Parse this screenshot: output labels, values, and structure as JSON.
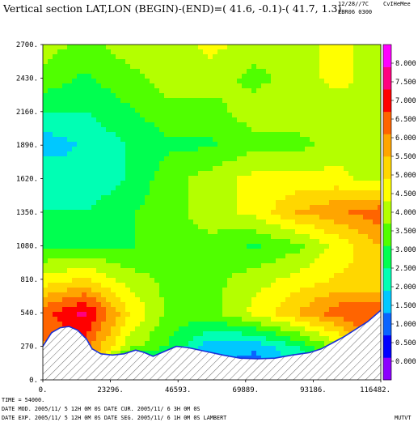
{
  "header": {
    "title": "Vertical section LAT,LON (BEGIN)-(END)=( 41.6, -0.1)-( 41.7,  1.3)",
    "date": "12/28//7C",
    "model": "EBR06 0300",
    "user": "CvIHeMee"
  },
  "footer": {
    "line1": "TIME =   54000.",
    "line2": "DATE MOD. 2005/11/ 5  12H 0M 0S   DATE CUR. 2005/11/ 6   3H 0M 0S",
    "line3": "DATE EXP. 2005/11/ 5  12H 0M 0S   DATE SEG. 2005/11/ 6   1H 0M 0S   LAMBERT",
    "variable": "MUTVT"
  },
  "colors": {
    "scale": [
      "#8b00ff",
      "#0000ff",
      "#0a64ff",
      "#00c8ff",
      "#00ffb4",
      "#00ff50",
      "#50ff00",
      "#b4ff00",
      "#ffff00",
      "#ffd700",
      "#ffa500",
      "#ff6400",
      "#ff0000",
      "#ff0080",
      "#ff00ff"
    ],
    "terrain_fill": "#ffffff",
    "terrain_line": "#1a2fd8"
  },
  "chart_data": {
    "type": "heatmap",
    "title": "Vertical section LAT,LON (BEGIN)-(END)=( 41.6, -0.1)-( 41.7,  1.3)",
    "x_ticks": [
      "0.",
      "23296.",
      "46593.",
      "69889.",
      "93186.",
      "116482."
    ],
    "y_ticks": [
      "0.",
      "270.",
      "540.",
      "810.",
      "1080.",
      "1350.",
      "1620.",
      "1890.",
      "2160.",
      "2430.",
      "2700."
    ],
    "xlim": [
      0,
      116482
    ],
    "ylim": [
      0,
      2700
    ],
    "colorbar": {
      "ticks": [
        "0.000",
        "0.500",
        "1.000",
        "1.500",
        "2.000",
        "2.500",
        "3.000",
        "3.500",
        "4.000",
        "4.500",
        "5.000",
        "5.500",
        "6.000",
        "6.500",
        "7.000",
        "7.500",
        "8.000"
      ],
      "range": [
        -0.5,
        8.5
      ]
    },
    "terrain": [
      [
        0,
        270
      ],
      [
        3000,
        380
      ],
      [
        6000,
        420
      ],
      [
        9000,
        430
      ],
      [
        12000,
        400
      ],
      [
        15000,
        330
      ],
      [
        17000,
        250
      ],
      [
        20000,
        210
      ],
      [
        24000,
        200
      ],
      [
        28000,
        210
      ],
      [
        32000,
        240
      ],
      [
        35000,
        220
      ],
      [
        38000,
        190
      ],
      [
        42000,
        230
      ],
      [
        46000,
        270
      ],
      [
        50000,
        260
      ],
      [
        56000,
        230
      ],
      [
        62000,
        200
      ],
      [
        68000,
        175
      ],
      [
        74000,
        170
      ],
      [
        80000,
        175
      ],
      [
        86000,
        200
      ],
      [
        92000,
        220
      ],
      [
        96000,
        250
      ],
      [
        100000,
        300
      ],
      [
        104000,
        350
      ],
      [
        108000,
        410
      ],
      [
        112000,
        470
      ],
      [
        116482,
        560
      ]
    ],
    "field": {
      "x": [
        0,
        14560,
        29120,
        43680,
        58240,
        72800,
        87360,
        101920,
        116482
      ],
      "y": [
        0,
        270,
        540,
        810,
        1080,
        1350,
        1620,
        1890,
        2160,
        2430,
        2700
      ],
      "values": [
        [
          5.5,
          5.5,
          0.5,
          1.5,
          1.5,
          0.5,
          1.0,
          3.5,
          7.5
        ],
        [
          6.0,
          6.5,
          4.0,
          3.0,
          1.5,
          1.5,
          2.5,
          4.0,
          7.5
        ],
        [
          6.5,
          7.5,
          5.0,
          3.5,
          3.5,
          4.5,
          5.5,
          6.5,
          6.5
        ],
        [
          4.5,
          5.0,
          4.0,
          3.5,
          3.5,
          4.0,
          4.5,
          5.0,
          5.0
        ],
        [
          3.0,
          3.0,
          3.0,
          3.5,
          3.5,
          3.0,
          3.5,
          4.5,
          5.5
        ],
        [
          2.5,
          2.5,
          3.0,
          3.5,
          4.0,
          4.5,
          5.5,
          6.0,
          6.5
        ],
        [
          2.5,
          2.0,
          2.5,
          3.5,
          4.0,
          4.5,
          4.5,
          4.5,
          4.0
        ],
        [
          1.5,
          2.0,
          2.5,
          3.0,
          3.0,
          3.5,
          3.5,
          4.0,
          4.0
        ],
        [
          2.5,
          2.5,
          3.0,
          3.5,
          3.5,
          4.0,
          4.0,
          4.0,
          4.0
        ],
        [
          3.5,
          3.0,
          3.5,
          4.0,
          4.0,
          3.5,
          4.0,
          4.5,
          4.0
        ],
        [
          4.0,
          3.5,
          4.0,
          4.0,
          4.5,
          4.0,
          4.0,
          4.5,
          4.0
        ]
      ]
    }
  }
}
